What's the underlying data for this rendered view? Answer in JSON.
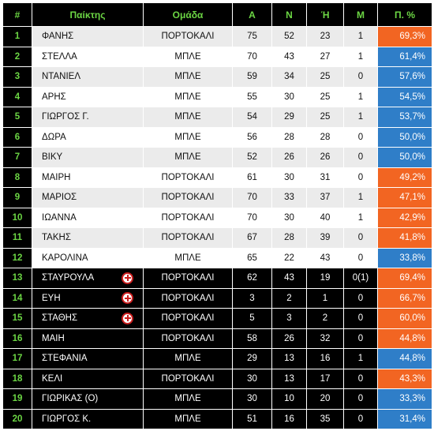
{
  "header": {
    "rank": "#",
    "player": "Παίκτης",
    "team": "Ομάδα",
    "a": "Α",
    "n": "Ν",
    "h": "Ή",
    "m": "Μ",
    "pct": "Π. %"
  },
  "colors": {
    "header_bg": "#000000",
    "header_text": "#6cd644",
    "orange": "#f26522",
    "blue": "#2f7ec8",
    "row_light": "#ffffff",
    "row_grey": "#ebebeb",
    "row_dark": "#000000",
    "medical_cross": "#cc1f1f"
  },
  "rows": [
    {
      "rank": "1",
      "name": "ΦΑΝΗΣ",
      "team": "ΠΟΡΤΟΚΑΛΙ",
      "a": "75",
      "n": "52",
      "h": "23",
      "m": "1",
      "pct": "69,3%",
      "pct_color": "orange",
      "style": "grey",
      "injured": false
    },
    {
      "rank": "2",
      "name": "ΣΤΕΛΛΑ",
      "team": "ΜΠΛΕ",
      "a": "70",
      "n": "43",
      "h": "27",
      "m": "1",
      "pct": "61,4%",
      "pct_color": "blue",
      "style": "light",
      "injured": false
    },
    {
      "rank": "3",
      "name": "ΝΤΑΝΙΕΛ",
      "team": "ΜΠΛΕ",
      "a": "59",
      "n": "34",
      "h": "25",
      "m": "0",
      "pct": "57,6%",
      "pct_color": "blue",
      "style": "grey",
      "injured": false
    },
    {
      "rank": "4",
      "name": "ΑΡΗΣ",
      "team": "ΜΠΛΕ",
      "a": "55",
      "n": "30",
      "h": "25",
      "m": "1",
      "pct": "54,5%",
      "pct_color": "blue",
      "style": "light",
      "injured": false
    },
    {
      "rank": "5",
      "name": "ΓΙΩΡΓΟΣ Γ.",
      "team": "ΜΠΛΕ",
      "a": "54",
      "n": "29",
      "h": "25",
      "m": "1",
      "pct": "53,7%",
      "pct_color": "blue",
      "style": "grey",
      "injured": false
    },
    {
      "rank": "6",
      "name": "ΔΩΡΑ",
      "team": "ΜΠΛΕ",
      "a": "56",
      "n": "28",
      "h": "28",
      "m": "0",
      "pct": "50,0%",
      "pct_color": "blue",
      "style": "light",
      "injured": false
    },
    {
      "rank": "7",
      "name": "ΒΙΚΥ",
      "team": "ΜΠΛΕ",
      "a": "52",
      "n": "26",
      "h": "26",
      "m": "0",
      "pct": "50,0%",
      "pct_color": "blue",
      "style": "grey",
      "injured": false
    },
    {
      "rank": "8",
      "name": "ΜΑΙΡΗ",
      "team": "ΠΟΡΤΟΚΑΛΙ",
      "a": "61",
      "n": "30",
      "h": "31",
      "m": "0",
      "pct": "49,2%",
      "pct_color": "orange",
      "style": "light",
      "injured": false
    },
    {
      "rank": "9",
      "name": "ΜΑΡΙΟΣ",
      "team": "ΠΟΡΤΟΚΑΛΙ",
      "a": "70",
      "n": "33",
      "h": "37",
      "m": "1",
      "pct": "47,1%",
      "pct_color": "orange",
      "style": "grey",
      "injured": false
    },
    {
      "rank": "10",
      "name": "ΙΩΑΝΝΑ",
      "team": "ΠΟΡΤΟΚΑΛΙ",
      "a": "70",
      "n": "30",
      "h": "40",
      "m": "1",
      "pct": "42,9%",
      "pct_color": "orange",
      "style": "light",
      "injured": false
    },
    {
      "rank": "11",
      "name": "ΤΑΚΗΣ",
      "team": "ΠΟΡΤΟΚΑΛΙ",
      "a": "67",
      "n": "28",
      "h": "39",
      "m": "0",
      "pct": "41,8%",
      "pct_color": "orange",
      "style": "grey",
      "injured": false
    },
    {
      "rank": "12",
      "name": "ΚΑΡΟΛΙΝΑ",
      "team": "ΜΠΛΕ",
      "a": "65",
      "n": "22",
      "h": "43",
      "m": "0",
      "pct": "33,8%",
      "pct_color": "blue",
      "style": "light",
      "injured": false
    },
    {
      "rank": "13",
      "name": "ΣΤΑΥΡΟΥΛΑ",
      "team": "ΠΟΡΤΟΚΑΛΙ",
      "a": "62",
      "n": "43",
      "h": "19",
      "m": "0(1)",
      "pct": "69,4%",
      "pct_color": "orange",
      "style": "dark",
      "injured": true
    },
    {
      "rank": "14",
      "name": "ΕΥΗ",
      "team": "ΠΟΡΤΟΚΑΛΙ",
      "a": "3",
      "n": "2",
      "h": "1",
      "m": "0",
      "pct": "66,7%",
      "pct_color": "orange",
      "style": "dark",
      "injured": true
    },
    {
      "rank": "15",
      "name": "ΣΤΑΘΗΣ",
      "team": "ΠΟΡΤΟΚΑΛΙ",
      "a": "5",
      "n": "3",
      "h": "2",
      "m": "0",
      "pct": "60,0%",
      "pct_color": "orange",
      "style": "dark",
      "injured": true
    },
    {
      "rank": "16",
      "name": "ΜΑΙΗ",
      "team": "ΠΟΡΤΟΚΑΛΙ",
      "a": "58",
      "n": "26",
      "h": "32",
      "m": "0",
      "pct": "44,8%",
      "pct_color": "orange",
      "style": "dark",
      "injured": false
    },
    {
      "rank": "17",
      "name": "ΣΤΕΦΑΝΙΑ",
      "team": "ΜΠΛΕ",
      "a": "29",
      "n": "13",
      "h": "16",
      "m": "1",
      "pct": "44,8%",
      "pct_color": "blue",
      "style": "dark",
      "injured": false
    },
    {
      "rank": "18",
      "name": "ΚΕΛΙ",
      "team": "ΠΟΡΤΟΚΑΛΙ",
      "a": "30",
      "n": "13",
      "h": "17",
      "m": "0",
      "pct": "43,3%",
      "pct_color": "orange",
      "style": "dark",
      "injured": false
    },
    {
      "rank": "19",
      "name": "ΓΙΩΡΙΚΑΣ (Ο)",
      "team": "ΜΠΛΕ",
      "a": "30",
      "n": "10",
      "h": "20",
      "m": "0",
      "pct": "33,3%",
      "pct_color": "blue",
      "style": "dark",
      "injured": false
    },
    {
      "rank": "20",
      "name": "ΓΙΩΡΓΟΣ Κ.",
      "team": "ΜΠΛΕ",
      "a": "51",
      "n": "16",
      "h": "35",
      "m": "0",
      "pct": "31,4%",
      "pct_color": "blue",
      "style": "dark",
      "injured": false
    }
  ]
}
